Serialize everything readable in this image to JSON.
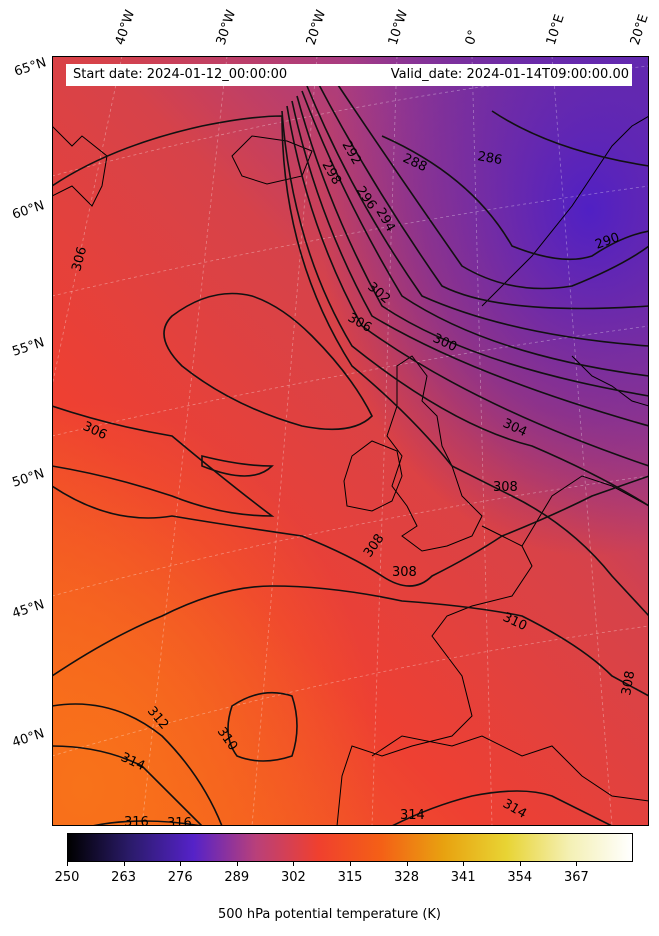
{
  "header": {
    "start_date": "Start date: 2024-01-12_00:00:00",
    "valid_date": "Valid_date: 2024-01-14T09:00:00.00"
  },
  "longitude_labels": [
    "40°W",
    "30°W",
    "20°W",
    "10°W",
    "0°",
    "10°E",
    "20°E"
  ],
  "latitude_labels": [
    "65°N",
    "60°N",
    "55°N",
    "50°N",
    "45°N",
    "40°N"
  ],
  "contour_labels": [
    "286",
    "288",
    "290",
    "292",
    "294",
    "296",
    "298",
    "300",
    "302",
    "304",
    "306",
    "306",
    "306",
    "308",
    "308",
    "308",
    "308",
    "310",
    "310",
    "312",
    "314",
    "314",
    "314",
    "316",
    "316"
  ],
  "colorbar": {
    "ticks": [
      "250",
      "263",
      "276",
      "289",
      "302",
      "315",
      "328",
      "341",
      "354",
      "367"
    ],
    "label": "500 hPa potential temperature (K)"
  },
  "colors": {
    "cmap_stops": [
      "#000000",
      "#2b1b6b",
      "#5522c8",
      "#b9407a",
      "#f0402e",
      "#f46016",
      "#e8a210",
      "#e8d434",
      "#f4f0b4",
      "#ffffff"
    ]
  }
}
